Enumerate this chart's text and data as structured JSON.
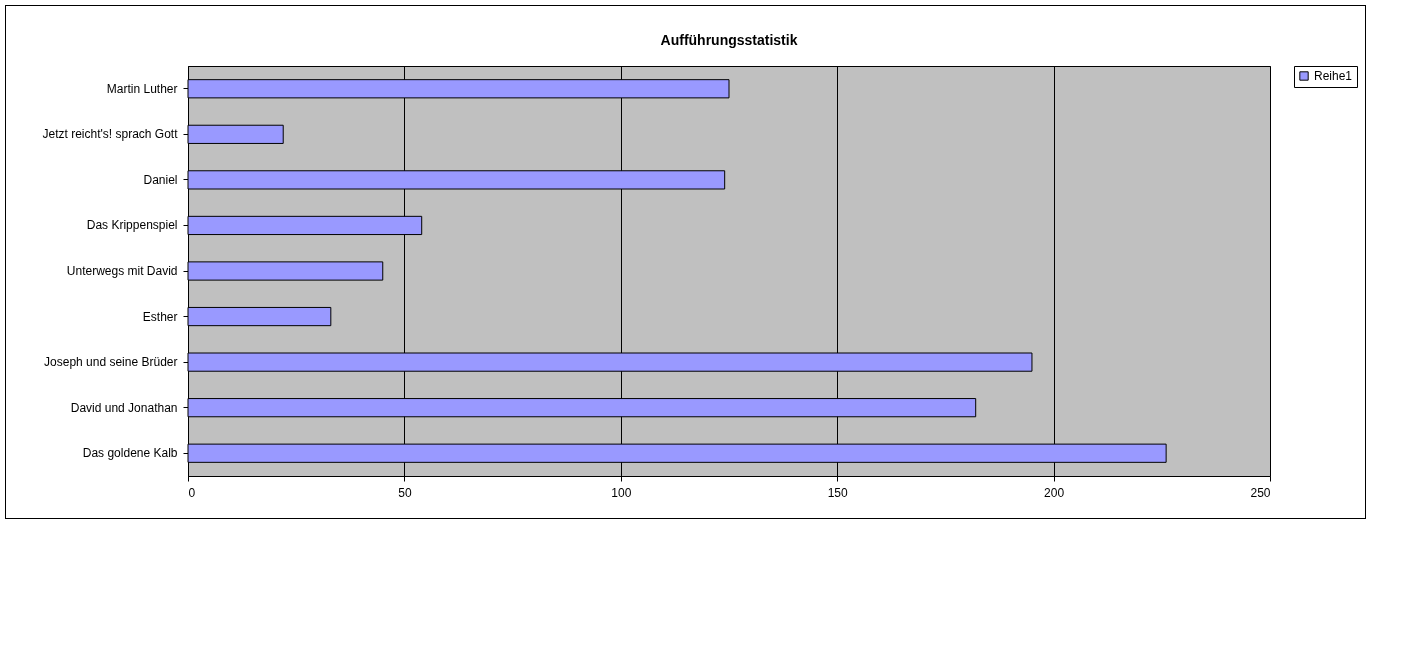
{
  "chart_data": {
    "type": "bar",
    "orientation": "horizontal",
    "title": "Aufführungsstatistik",
    "categories": [
      "Martin Luther",
      "Jetzt reicht's! sprach Gott",
      "Daniel",
      "Das Krippenspiel",
      "Unterwegs mit David",
      "Esther",
      "Joseph und seine Brüder",
      "David und Jonathan",
      "Das goldene Kalb"
    ],
    "series": [
      {
        "name": "Reihe1",
        "color": "#9999ff",
        "values": [
          125,
          22,
          124,
          54,
          45,
          33,
          195,
          182,
          226
        ]
      }
    ],
    "xlim": [
      0,
      250
    ],
    "xticks": [
      0,
      50,
      100,
      150,
      200,
      250
    ],
    "grid": "x",
    "legend": "right"
  }
}
